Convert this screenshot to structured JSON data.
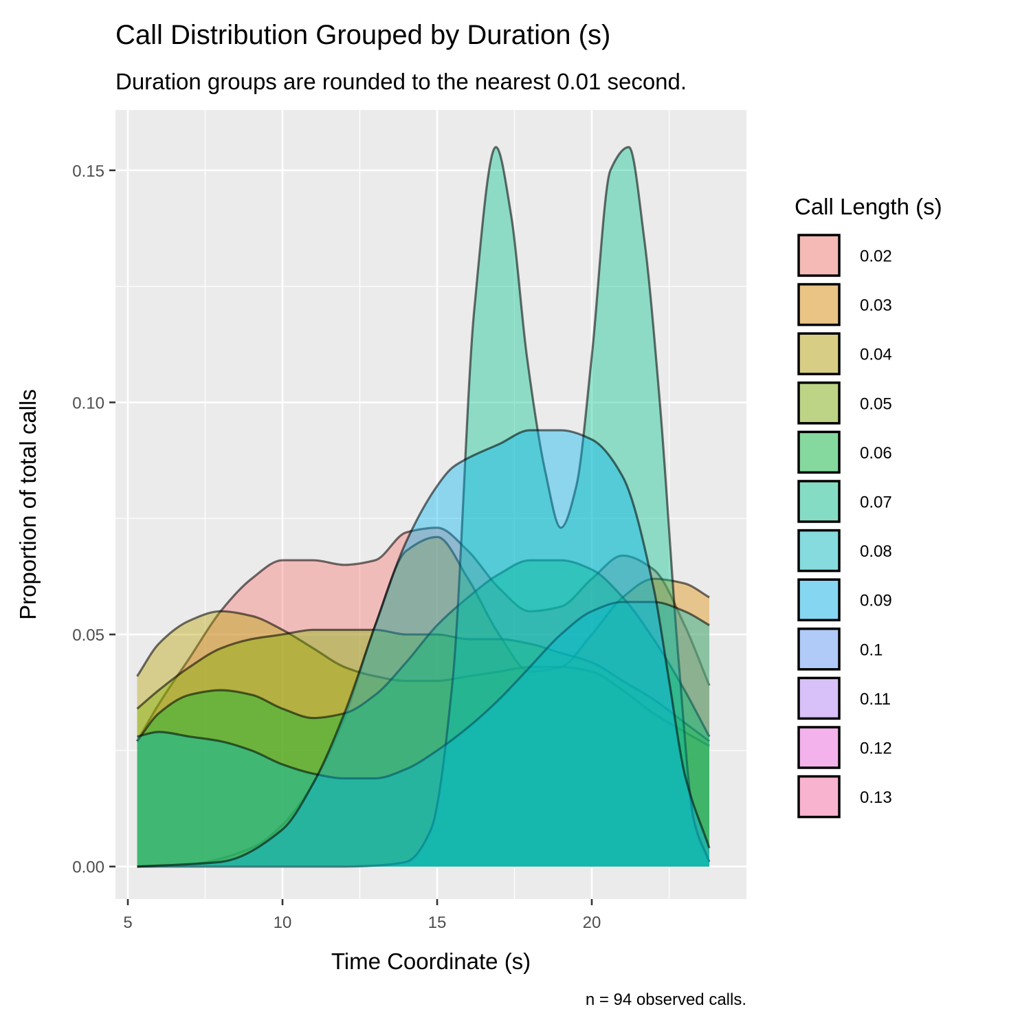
{
  "chart_data": {
    "type": "area",
    "title": "Call Distribution Grouped by Duration (s)",
    "subtitle": "Duration groups are rounded to the nearest 0.01 second.",
    "xlabel": "Time Coordinate (s)",
    "ylabel": "Proportion of total calls",
    "caption": "n = 94 observed calls.",
    "xlim": [
      4.6,
      25.0
    ],
    "ylim": [
      -0.007,
      0.163
    ],
    "x_ticks": [
      5,
      10,
      15,
      20
    ],
    "x_tick_labels": [
      "5",
      "10",
      "15",
      "20"
    ],
    "y_ticks": [
      0.0,
      0.05,
      0.1,
      0.15
    ],
    "y_tick_labels": [
      "0.00",
      "0.05",
      "0.10",
      "0.15"
    ],
    "grid": true,
    "legend": {
      "title": "Call Length (s)",
      "position": "right"
    },
    "series": [
      {
        "name": "0.02",
        "color": "#F8766D",
        "x": [
          5.3,
          6,
          7,
          8,
          9,
          10,
          11,
          12,
          13,
          14,
          15,
          16,
          17,
          18,
          19,
          20,
          21,
          22,
          23,
          23.8
        ],
        "values": [
          0.027,
          0.035,
          0.045,
          0.055,
          0.062,
          0.066,
          0.066,
          0.065,
          0.066,
          0.072,
          0.073,
          0.068,
          0.06,
          0.055,
          0.056,
          0.062,
          0.067,
          0.064,
          0.052,
          0.039
        ]
      },
      {
        "name": "0.03",
        "color": "#DE8C00",
        "x": [
          5.3,
          7,
          9,
          10,
          11,
          12,
          13,
          14,
          15,
          16,
          17,
          18,
          19,
          20,
          21,
          22,
          23,
          23.8
        ],
        "values": [
          0.0,
          0.0005,
          0.004,
          0.009,
          0.018,
          0.032,
          0.052,
          0.068,
          0.071,
          0.062,
          0.05,
          0.042,
          0.043,
          0.05,
          0.058,
          0.062,
          0.061,
          0.058
        ]
      },
      {
        "name": "0.04",
        "color": "#B79F00",
        "x": [
          5.3,
          6,
          7,
          8,
          9,
          10,
          11,
          12,
          13,
          14,
          15,
          16,
          17,
          18,
          19,
          20,
          21,
          22,
          23,
          23.8
        ],
        "values": [
          0.041,
          0.048,
          0.053,
          0.055,
          0.054,
          0.051,
          0.047,
          0.043,
          0.041,
          0.04,
          0.04,
          0.041,
          0.042,
          0.043,
          0.043,
          0.042,
          0.038,
          0.033,
          0.029,
          0.026
        ]
      },
      {
        "name": "0.05",
        "color": "#7CAE00",
        "x": [
          5.3,
          6,
          7,
          8,
          9,
          10,
          11,
          12,
          13,
          14,
          15,
          16,
          17,
          18,
          19,
          20,
          21,
          22,
          23,
          23.8
        ],
        "values": [
          0.034,
          0.038,
          0.043,
          0.047,
          0.049,
          0.05,
          0.051,
          0.051,
          0.051,
          0.05,
          0.05,
          0.049,
          0.049,
          0.048,
          0.046,
          0.044,
          0.04,
          0.036,
          0.031,
          0.027
        ]
      },
      {
        "name": "0.06",
        "color": "#00BA38",
        "x": [
          5.3,
          6,
          7,
          8,
          9,
          10,
          11,
          12,
          13,
          14,
          15,
          16,
          17,
          18,
          19,
          20,
          21,
          22,
          23,
          23.8
        ],
        "values": [
          0.027,
          0.033,
          0.037,
          0.038,
          0.037,
          0.034,
          0.032,
          0.033,
          0.037,
          0.044,
          0.052,
          0.058,
          0.063,
          0.066,
          0.066,
          0.064,
          0.058,
          0.049,
          0.038,
          0.028
        ]
      },
      {
        "name": "0.07",
        "color": "#00C08B",
        "x": [
          5.3,
          11,
          12,
          13,
          14,
          14.8,
          15.5,
          16.2,
          16.9,
          17.4,
          17.9,
          18.5,
          19.0,
          19.5,
          20.0,
          20.6,
          21.2,
          21.7,
          22.2,
          22.8,
          23.3,
          23.8
        ],
        "values": [
          0.0,
          0.0,
          0.0,
          0.0002,
          0.001,
          0.008,
          0.04,
          0.12,
          0.155,
          0.14,
          0.11,
          0.085,
          0.073,
          0.082,
          0.11,
          0.15,
          0.155,
          0.135,
          0.1,
          0.045,
          0.01,
          0.001
        ]
      },
      {
        "name": "0.08",
        "color": "#00BFC4",
        "x": [
          5.3,
          6,
          7,
          8,
          9,
          10,
          11,
          12,
          13,
          14,
          15,
          16,
          17,
          18,
          19,
          20,
          21,
          22,
          23,
          23.8
        ],
        "values": [
          0.028,
          0.029,
          0.028,
          0.027,
          0.025,
          0.022,
          0.02,
          0.019,
          0.019,
          0.021,
          0.025,
          0.03,
          0.036,
          0.043,
          0.05,
          0.055,
          0.057,
          0.057,
          0.055,
          0.052
        ]
      },
      {
        "name": "0.09",
        "color": "#00B4F0",
        "x": [
          5.3,
          8,
          10,
          11,
          12,
          13,
          14,
          15,
          15.5,
          16,
          17,
          18,
          19,
          20,
          21,
          22,
          22.5,
          23,
          23.8
        ],
        "values": [
          0.0,
          0.001,
          0.008,
          0.018,
          0.033,
          0.052,
          0.07,
          0.082,
          0.086,
          0.088,
          0.091,
          0.094,
          0.094,
          0.092,
          0.084,
          0.06,
          0.04,
          0.02,
          0.004
        ]
      },
      {
        "name": "0.1",
        "color": "#619CFF",
        "x": [],
        "values": []
      },
      {
        "name": "0.11",
        "color": "#B983FF",
        "x": [],
        "values": []
      },
      {
        "name": "0.12",
        "color": "#F564E3",
        "x": [],
        "values": []
      },
      {
        "name": "0.13",
        "color": "#FF67A4",
        "x": [],
        "values": []
      }
    ]
  }
}
